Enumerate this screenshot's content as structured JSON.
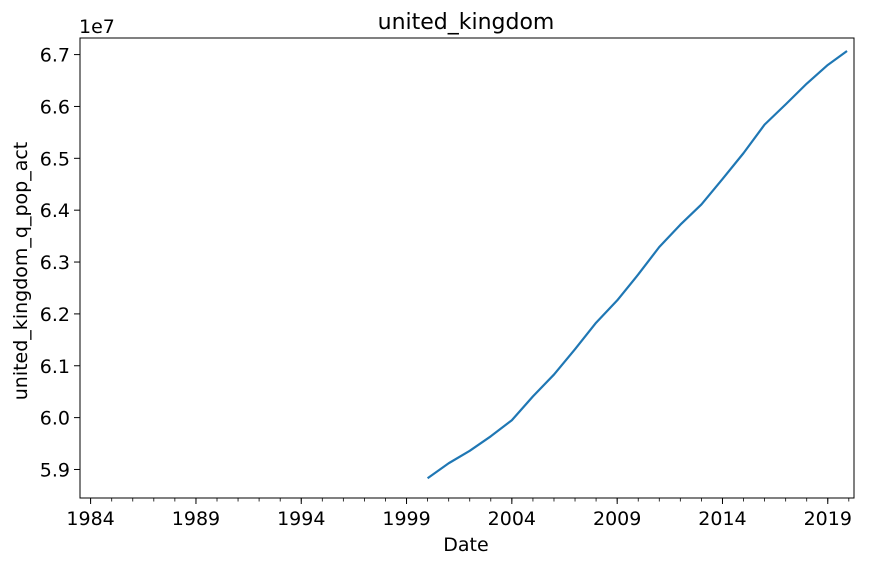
{
  "chart_data": {
    "type": "line",
    "title": "united_kingdom",
    "xlabel": "Date",
    "ylabel": "united_kingdom_q_pop_act",
    "y_offset_label": "1e7",
    "xlim": [
      "1983-07-01",
      "2020-03-31"
    ],
    "ylim": [
      58450000,
      67320000
    ],
    "grid": false,
    "x_ticks": [
      {
        "date": "1984-01-01",
        "label": "1984"
      },
      {
        "date": "1989-01-01",
        "label": "1989"
      },
      {
        "date": "1994-01-01",
        "label": "1994"
      },
      {
        "date": "1999-01-01",
        "label": "1999"
      },
      {
        "date": "2004-01-01",
        "label": "2004"
      },
      {
        "date": "2009-01-01",
        "label": "2009"
      },
      {
        "date": "2014-01-01",
        "label": "2014"
      },
      {
        "date": "2019-01-01",
        "label": "2019"
      }
    ],
    "y_ticks": [
      {
        "value": 59000000,
        "label": "5.9"
      },
      {
        "value": 60000000,
        "label": "6.0"
      },
      {
        "value": 61000000,
        "label": "6.1"
      },
      {
        "value": 62000000,
        "label": "6.2"
      },
      {
        "value": 63000000,
        "label": "6.3"
      },
      {
        "value": 64000000,
        "label": "6.4"
      },
      {
        "value": 65000000,
        "label": "6.5"
      },
      {
        "value": 66000000,
        "label": "6.6"
      },
      {
        "value": 67000000,
        "label": "6.7"
      }
    ],
    "series": [
      {
        "color": "#1f77b4",
        "x": [
          "2000-01-01",
          "2001-01-01",
          "2002-01-01",
          "2003-01-01",
          "2004-01-01",
          "2005-01-01",
          "2006-01-01",
          "2007-01-01",
          "2008-01-01",
          "2009-01-01",
          "2010-01-01",
          "2011-01-01",
          "2012-01-01",
          "2013-01-01",
          "2014-01-01",
          "2015-01-01",
          "2016-01-01",
          "2017-01-01",
          "2018-01-01",
          "2019-01-01",
          "2019-12-01"
        ],
        "values": [
          58830000,
          59120000,
          59360000,
          59640000,
          59950000,
          60410000,
          60830000,
          61320000,
          61830000,
          62260000,
          62760000,
          63290000,
          63720000,
          64110000,
          64600000,
          65100000,
          65650000,
          66040000,
          66440000,
          66800000,
          67070000
        ]
      }
    ]
  }
}
